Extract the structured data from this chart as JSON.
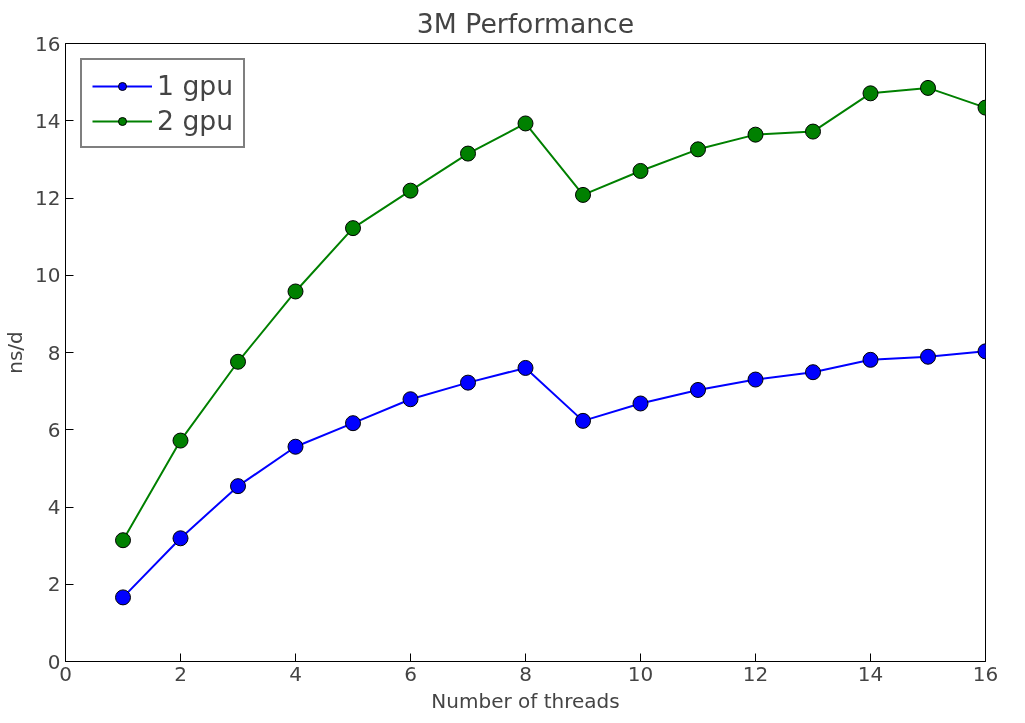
{
  "chart_data": {
    "type": "line",
    "title": "3M Performance",
    "xlabel": "Number of threads",
    "ylabel": "ns/d",
    "x": [
      1,
      2,
      3,
      4,
      5,
      6,
      7,
      8,
      9,
      10,
      11,
      12,
      13,
      14,
      15,
      16
    ],
    "series": [
      {
        "name": "1 gpu",
        "color": "#0000ff",
        "values": [
          1.66,
          3.19,
          4.54,
          5.56,
          6.17,
          6.79,
          7.22,
          7.6,
          6.23,
          6.68,
          7.03,
          7.3,
          7.49,
          7.81,
          7.89,
          8.03
        ]
      },
      {
        "name": "2 gpu",
        "color": "#008000",
        "values": [
          3.14,
          5.72,
          7.76,
          9.58,
          11.22,
          12.19,
          13.15,
          13.93,
          12.08,
          12.7,
          13.26,
          13.64,
          13.72,
          14.71,
          14.85,
          14.34
        ]
      }
    ],
    "xlim": [
      0,
      16
    ],
    "ylim": [
      0,
      16
    ],
    "xticks": [
      0,
      2,
      4,
      6,
      8,
      10,
      12,
      14,
      16
    ],
    "yticks": [
      0,
      2,
      4,
      6,
      8,
      10,
      12,
      14,
      16
    ],
    "grid": false,
    "legend": "top left",
    "marker": "circle",
    "line_style": "solid"
  }
}
